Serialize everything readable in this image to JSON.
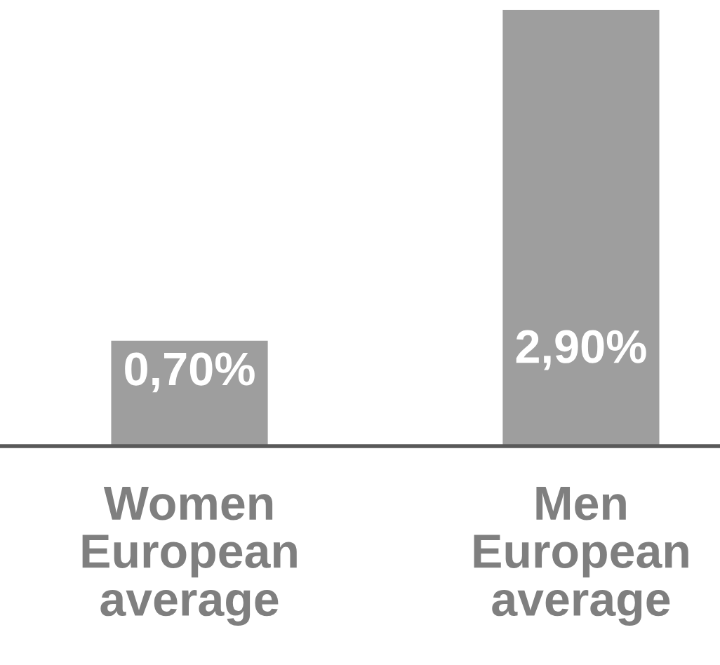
{
  "chart_data": {
    "type": "bar",
    "categories": [
      "Women\nEuropean\naverage",
      "Men\nEuropean\naverage"
    ],
    "values": [
      0.7,
      2.9
    ],
    "color": "#9e9e9e",
    "value_labels": [
      "0,70%",
      "2,90%"
    ]
  }
}
